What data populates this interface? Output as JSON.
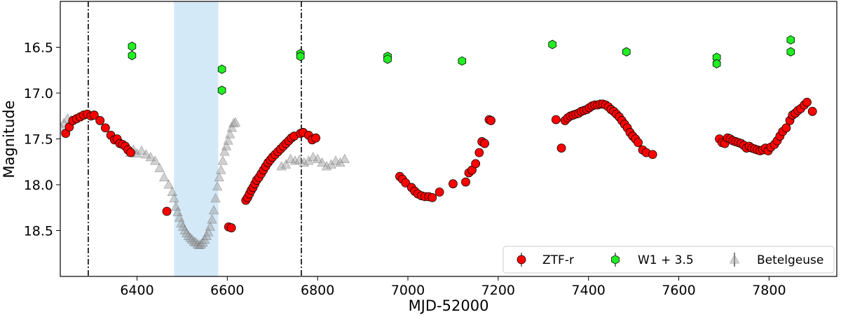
{
  "chart_data": {
    "type": "scatter",
    "title": "",
    "xlabel": "MJD-52000",
    "ylabel": "Magnitude",
    "xlim": [
      6230,
      7950
    ],
    "ylim": [
      19.0,
      16.0
    ],
    "y_inverted": true,
    "x_ticks": [
      6400,
      6600,
      6800,
      7000,
      7200,
      7400,
      7600,
      7800
    ],
    "y_ticks": [
      16.5,
      17.0,
      17.5,
      18.0,
      18.5
    ],
    "x_tick_labels": [
      "6400",
      "6600",
      "6800",
      "7000",
      "7200",
      "7400",
      "7600",
      "7800"
    ],
    "y_tick_labels": [
      "16.5",
      "17.0",
      "17.5",
      "18.0",
      "18.5"
    ],
    "vertical_lines": [
      6292,
      6764
    ],
    "shaded_span": {
      "x_start": 6482,
      "x_end": 6580,
      "color": "#d4e9f7"
    },
    "legend_position": "lower-right",
    "series": [
      {
        "name": "ZTF-r",
        "marker": "circle",
        "color": "#ff0000",
        "points": [
          [
            6242,
            17.44
          ],
          [
            6250,
            17.37
          ],
          [
            6258,
            17.3
          ],
          [
            6266,
            17.28
          ],
          [
            6274,
            17.26
          ],
          [
            6282,
            17.24
          ],
          [
            6290,
            17.23
          ],
          [
            6298,
            17.25
          ],
          [
            6305,
            17.24
          ],
          [
            6318,
            17.3
          ],
          [
            6330,
            17.38
          ],
          [
            6342,
            17.46
          ],
          [
            6350,
            17.51
          ],
          [
            6356,
            17.5
          ],
          [
            6362,
            17.55
          ],
          [
            6368,
            17.56
          ],
          [
            6374,
            17.58
          ],
          [
            6380,
            17.62
          ],
          [
            6386,
            17.65
          ],
          [
            6466,
            18.29
          ],
          [
            6603,
            18.46
          ],
          [
            6609,
            18.47
          ],
          [
            6641,
            18.17
          ],
          [
            6645,
            18.14
          ],
          [
            6649,
            18.1
          ],
          [
            6653,
            18.06
          ],
          [
            6657,
            18.03
          ],
          [
            6661,
            17.99
          ],
          [
            6665,
            17.95
          ],
          [
            6670,
            17.92
          ],
          [
            6675,
            17.88
          ],
          [
            6680,
            17.84
          ],
          [
            6685,
            17.8
          ],
          [
            6690,
            17.76
          ],
          [
            6695,
            17.73
          ],
          [
            6700,
            17.7
          ],
          [
            6706,
            17.67
          ],
          [
            6712,
            17.64
          ],
          [
            6718,
            17.61
          ],
          [
            6724,
            17.58
          ],
          [
            6730,
            17.55
          ],
          [
            6736,
            17.52
          ],
          [
            6742,
            17.49
          ],
          [
            6748,
            17.47
          ],
          [
            6762,
            17.44
          ],
          [
            6768,
            17.43
          ],
          [
            6780,
            17.46
          ],
          [
            6788,
            17.51
          ],
          [
            6796,
            17.49
          ],
          [
            6982,
            17.91
          ],
          [
            6988,
            17.94
          ],
          [
            6995,
            17.98
          ],
          [
            7008,
            18.03
          ],
          [
            7015,
            18.07
          ],
          [
            7022,
            18.1
          ],
          [
            7030,
            18.12
          ],
          [
            7038,
            18.13
          ],
          [
            7046,
            18.13
          ],
          [
            7054,
            18.14
          ],
          [
            7070,
            18.08
          ],
          [
            7100,
            17.99
          ],
          [
            7128,
            17.97
          ],
          [
            7135,
            17.87
          ],
          [
            7142,
            17.84
          ],
          [
            7150,
            17.77
          ],
          [
            7158,
            17.65
          ],
          [
            7164,
            17.53
          ],
          [
            7170,
            17.55
          ],
          [
            7180,
            17.29
          ],
          [
            7184,
            17.3
          ],
          [
            7328,
            17.29
          ],
          [
            7340,
            17.6
          ],
          [
            7348,
            17.3
          ],
          [
            7354,
            17.27
          ],
          [
            7360,
            17.25
          ],
          [
            7366,
            17.24
          ],
          [
            7372,
            17.23
          ],
          [
            7378,
            17.22
          ],
          [
            7384,
            17.2
          ],
          [
            7390,
            17.19
          ],
          [
            7396,
            17.18
          ],
          [
            7402,
            17.16
          ],
          [
            7408,
            17.14
          ],
          [
            7414,
            17.13
          ],
          [
            7420,
            17.13
          ],
          [
            7426,
            17.12
          ],
          [
            7432,
            17.12
          ],
          [
            7438,
            17.13
          ],
          [
            7444,
            17.15
          ],
          [
            7450,
            17.18
          ],
          [
            7456,
            17.2
          ],
          [
            7462,
            17.23
          ],
          [
            7468,
            17.26
          ],
          [
            7474,
            17.3
          ],
          [
            7480,
            17.34
          ],
          [
            7486,
            17.38
          ],
          [
            7492,
            17.43
          ],
          [
            7498,
            17.47
          ],
          [
            7504,
            17.5
          ],
          [
            7510,
            17.54
          ],
          [
            7520,
            17.62
          ],
          [
            7528,
            17.65
          ],
          [
            7542,
            17.67
          ],
          [
            7690,
            17.5
          ],
          [
            7696,
            17.54
          ],
          [
            7702,
            17.55
          ],
          [
            7708,
            17.49
          ],
          [
            7714,
            17.5
          ],
          [
            7720,
            17.52
          ],
          [
            7726,
            17.53
          ],
          [
            7732,
            17.54
          ],
          [
            7738,
            17.55
          ],
          [
            7744,
            17.57
          ],
          [
            7750,
            17.6
          ],
          [
            7756,
            17.58
          ],
          [
            7762,
            17.6
          ],
          [
            7768,
            17.61
          ],
          [
            7774,
            17.62
          ],
          [
            7780,
            17.63
          ],
          [
            7786,
            17.62
          ],
          [
            7792,
            17.6
          ],
          [
            7798,
            17.63
          ],
          [
            7804,
            17.59
          ],
          [
            7812,
            17.56
          ],
          [
            7818,
            17.52
          ],
          [
            7824,
            17.47
          ],
          [
            7830,
            17.42
          ],
          [
            7838,
            17.38
          ],
          [
            7846,
            17.3
          ],
          [
            7852,
            17.24
          ],
          [
            7858,
            17.22
          ],
          [
            7864,
            17.19
          ],
          [
            7870,
            17.17
          ],
          [
            7878,
            17.13
          ],
          [
            7884,
            17.1
          ],
          [
            7896,
            17.2
          ]
        ]
      },
      {
        "name": "W1 + 3.5",
        "marker": "hexagon",
        "color": "#22ee22",
        "points": [
          [
            6389,
            16.49
          ],
          [
            6389,
            16.59
          ],
          [
            6588,
            16.74
          ],
          [
            6588,
            16.97
          ],
          [
            6762,
            16.57
          ],
          [
            6762,
            16.6
          ],
          [
            6955,
            16.6
          ],
          [
            6955,
            16.63
          ],
          [
            7120,
            16.65
          ],
          [
            7320,
            16.47
          ],
          [
            7484,
            16.55
          ],
          [
            7684,
            16.61
          ],
          [
            7684,
            16.68
          ],
          [
            7848,
            16.42
          ],
          [
            7848,
            16.55
          ]
        ]
      },
      {
        "name": "Betelgeuse",
        "marker": "triangle",
        "color": "#999999",
        "points": [
          [
            6232,
            17.38
          ],
          [
            6238,
            17.33
          ],
          [
            6246,
            17.28
          ],
          [
            6254,
            17.3
          ],
          [
            6385,
            17.65
          ],
          [
            6392,
            17.62
          ],
          [
            6400,
            17.66
          ],
          [
            6410,
            17.63
          ],
          [
            6420,
            17.67
          ],
          [
            6430,
            17.7
          ],
          [
            6440,
            17.74
          ],
          [
            6450,
            17.82
          ],
          [
            6460,
            17.92
          ],
          [
            6470,
            18.0
          ],
          [
            6478,
            18.08
          ],
          [
            6482,
            18.15
          ],
          [
            6486,
            18.24
          ],
          [
            6490,
            18.3
          ],
          [
            6494,
            18.36
          ],
          [
            6498,
            18.42
          ],
          [
            6502,
            18.46
          ],
          [
            6506,
            18.5
          ],
          [
            6510,
            18.53
          ],
          [
            6514,
            18.56
          ],
          [
            6518,
            18.58
          ],
          [
            6522,
            18.6
          ],
          [
            6526,
            18.62
          ],
          [
            6530,
            18.63
          ],
          [
            6534,
            18.65
          ],
          [
            6538,
            18.66
          ],
          [
            6542,
            18.65
          ],
          [
            6546,
            18.63
          ],
          [
            6550,
            18.6
          ],
          [
            6554,
            18.56
          ],
          [
            6558,
            18.52
          ],
          [
            6562,
            18.46
          ],
          [
            6566,
            18.38
          ],
          [
            6570,
            18.28
          ],
          [
            6574,
            18.15
          ],
          [
            6578,
            18.02
          ],
          [
            6582,
            17.92
          ],
          [
            6586,
            17.84
          ],
          [
            6590,
            17.74
          ],
          [
            6594,
            17.64
          ],
          [
            6598,
            17.58
          ],
          [
            6602,
            17.52
          ],
          [
            6606,
            17.45
          ],
          [
            6610,
            17.38
          ],
          [
            6614,
            17.33
          ],
          [
            6618,
            17.32
          ],
          [
            6720,
            17.8
          ],
          [
            6730,
            17.78
          ],
          [
            6740,
            17.72
          ],
          [
            6750,
            17.74
          ],
          [
            6760,
            17.73
          ],
          [
            6770,
            17.76
          ],
          [
            6780,
            17.74
          ],
          [
            6790,
            17.7
          ],
          [
            6800,
            17.72
          ],
          [
            6810,
            17.76
          ],
          [
            6820,
            17.8
          ],
          [
            6830,
            17.78
          ],
          [
            6840,
            17.74
          ],
          [
            6850,
            17.76
          ],
          [
            6860,
            17.72
          ]
        ]
      }
    ]
  }
}
